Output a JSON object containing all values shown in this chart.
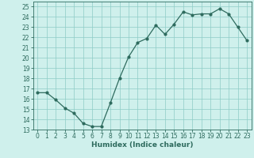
{
  "x": [
    0,
    1,
    2,
    3,
    4,
    5,
    6,
    7,
    8,
    9,
    10,
    11,
    12,
    13,
    14,
    15,
    16,
    17,
    18,
    19,
    20,
    21,
    22,
    23
  ],
  "y": [
    16.6,
    16.6,
    15.9,
    15.1,
    14.6,
    13.6,
    13.3,
    13.3,
    15.6,
    18.0,
    20.1,
    21.5,
    21.9,
    23.2,
    22.3,
    23.3,
    24.5,
    24.2,
    24.3,
    24.3,
    24.8,
    24.3,
    23.0,
    21.7
  ],
  "line_color": "#2e6b5e",
  "marker": "o",
  "marker_size": 2,
  "bg_color": "#cff0ec",
  "grid_color": "#8eccc6",
  "xlabel": "Humidex (Indice chaleur)",
  "xlim": [
    -0.5,
    23.5
  ],
  "ylim": [
    13,
    25.5
  ],
  "yticks": [
    13,
    14,
    15,
    16,
    17,
    18,
    19,
    20,
    21,
    22,
    23,
    24,
    25
  ],
  "xticks": [
    0,
    1,
    2,
    3,
    4,
    5,
    6,
    7,
    8,
    9,
    10,
    11,
    12,
    13,
    14,
    15,
    16,
    17,
    18,
    19,
    20,
    21,
    22,
    23
  ],
  "label_fontsize": 6.5,
  "tick_fontsize": 5.5
}
